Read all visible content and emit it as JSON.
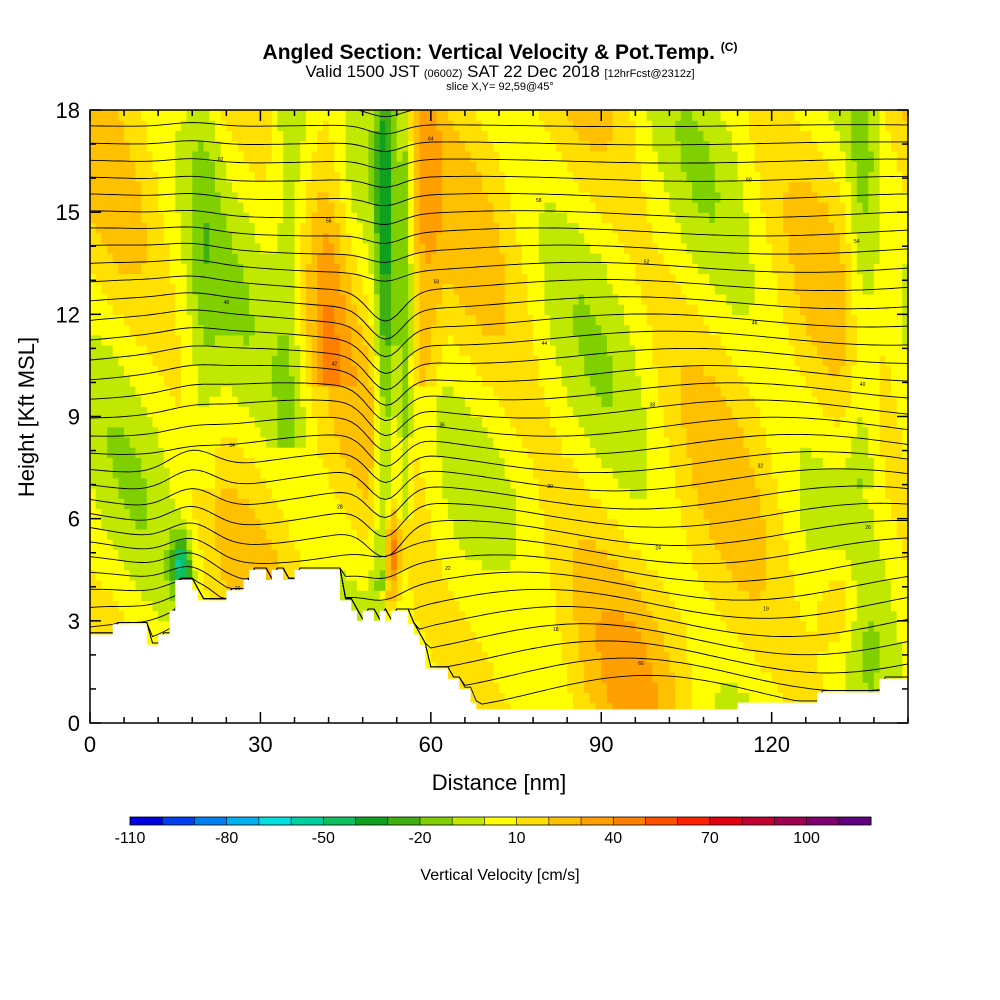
{
  "title": {
    "main": "Angled Section: Vertical Velocity & Pot.Temp.",
    "main_suffix": "(C)",
    "valid_prefix": "Valid 1500 JST",
    "valid_zulu": "(0600Z)",
    "valid_date": "SAT 22 Dec 2018",
    "forecast": "[12hrFcst@2312z]",
    "slice": "slice X,Y= 92,59@45°"
  },
  "chart_data": {
    "type": "heatmap",
    "xlabel": "Distance [nm]",
    "ylabel": "Height [Kft MSL]",
    "xlim": [
      0,
      144
    ],
    "ylim": [
      0,
      18
    ],
    "x_ticks": [
      0,
      30,
      60,
      90,
      120
    ],
    "y_ticks": [
      0,
      3,
      6,
      9,
      12,
      15,
      18
    ],
    "colorbar": {
      "label": "Vertical Velocity [cm/s]",
      "min": -110,
      "max": 120,
      "step": 10,
      "tick_labels": [
        -110,
        -80,
        -50,
        -20,
        10,
        40,
        70,
        100
      ],
      "colors": [
        "#0000e0",
        "#0040f0",
        "#0080f0",
        "#00b0f0",
        "#00e0e0",
        "#00d0a0",
        "#10c060",
        "#10a020",
        "#40b010",
        "#80d000",
        "#c0e800",
        "#ffff00",
        "#ffe000",
        "#ffc000",
        "#ffa000",
        "#ff8000",
        "#ff5000",
        "#ff2000",
        "#e00010",
        "#c00030",
        "#a00050",
        "#800070",
        "#600080"
      ]
    },
    "terrain_kft": [
      [
        0,
        2.6
      ],
      [
        4,
        2.9
      ],
      [
        9,
        2.9
      ],
      [
        10,
        2.3
      ],
      [
        12,
        2.6
      ],
      [
        14,
        3.3
      ],
      [
        15,
        4.2
      ],
      [
        17,
        4.2
      ],
      [
        18,
        3.9
      ],
      [
        19,
        3.6
      ],
      [
        23,
        3.6
      ],
      [
        24,
        3.9
      ],
      [
        27,
        4.2
      ],
      [
        28,
        4.5
      ],
      [
        31,
        4.2
      ],
      [
        32,
        4.5
      ],
      [
        34,
        4.2
      ],
      [
        36,
        4.5
      ],
      [
        42,
        4.5
      ],
      [
        44,
        3.6
      ],
      [
        46,
        3.3
      ],
      [
        47,
        3.0
      ],
      [
        48,
        3.3
      ],
      [
        50,
        3.0
      ],
      [
        51,
        3.3
      ],
      [
        52,
        3.0
      ],
      [
        53,
        3.3
      ],
      [
        55,
        3.3
      ],
      [
        56,
        2.9
      ],
      [
        57,
        2.6
      ],
      [
        58,
        2.3
      ],
      [
        59,
        1.6
      ],
      [
        63,
        1.3
      ],
      [
        65,
        1.0
      ],
      [
        67,
        0.6
      ],
      [
        68,
        0.4
      ],
      [
        80,
        0.4
      ],
      [
        100,
        0.4
      ],
      [
        113,
        0.4
      ],
      [
        114,
        0.6
      ],
      [
        127,
        0.6
      ],
      [
        128,
        0.9
      ],
      [
        138,
        0.9
      ],
      [
        139,
        1.3
      ],
      [
        144,
        1.3
      ]
    ],
    "theta_contours": {
      "interval_C": 1,
      "labeled": [
        "16",
        "17",
        "18",
        "19",
        "20",
        "22",
        "24",
        "26",
        "28",
        "30",
        "32",
        "34",
        "36",
        "38",
        "40",
        "42",
        "44",
        "46",
        "48",
        "50",
        "52",
        "54",
        "56",
        "58",
        "60",
        "62",
        "64",
        "66"
      ]
    },
    "features": [
      {
        "name": "updraft-core",
        "x_nm": 53,
        "height_kft": [
          3.6,
          6.0
        ],
        "max_cm_s": 70
      },
      {
        "name": "downdraft-band",
        "x_nm": 52,
        "height_kft": [
          4.0,
          18.0
        ],
        "min_cm_s": -50
      },
      {
        "name": "lee-downdraft",
        "x_nm": 16,
        "height_kft": [
          4.0,
          5.5
        ],
        "min_cm_s": -50
      },
      {
        "name": "updraft-band",
        "x_nm": 132,
        "height_kft": [
          2.5,
          5.0
        ],
        "max_cm_s": 40
      }
    ]
  }
}
